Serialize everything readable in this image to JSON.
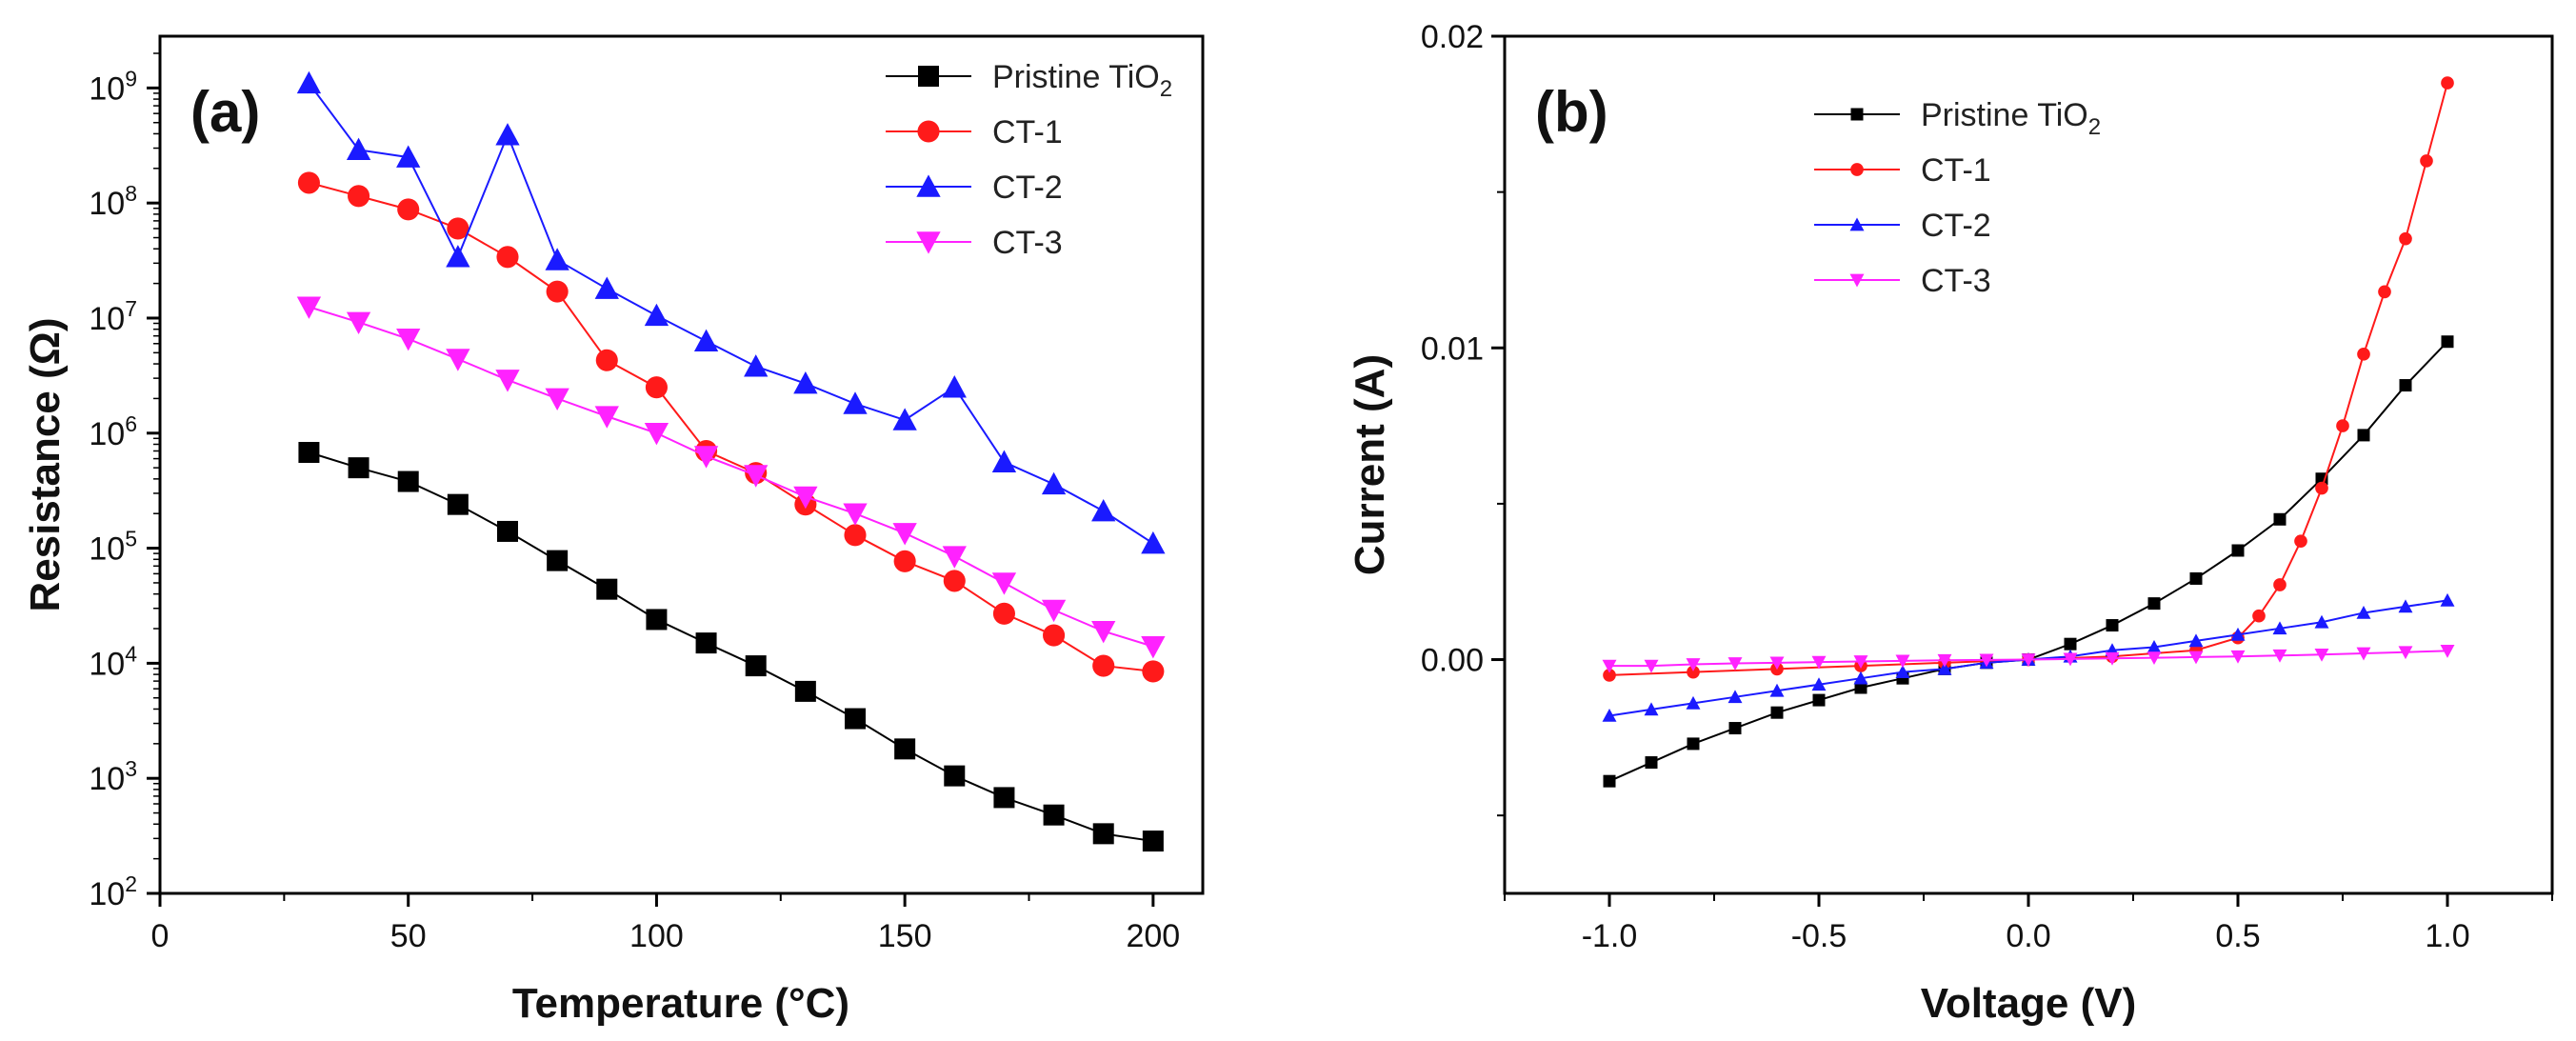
{
  "chart_data": [
    {
      "panel_label": "(a)",
      "type": "line",
      "scale_y": "log",
      "xlabel": "Temperature (°C)",
      "ylabel": "Resistance (Ω)",
      "xlim": [
        0,
        210
      ],
      "ylim_exp": [
        2,
        9.45
      ],
      "x_ticks": [
        0,
        50,
        100,
        150,
        200
      ],
      "y_tick_exponents": [
        2,
        3,
        4,
        5,
        6,
        7,
        8,
        9
      ],
      "y_tick_base": "10",
      "legend_position": "top-right",
      "x": [
        30,
        40,
        50,
        60,
        70,
        80,
        90,
        100,
        110,
        120,
        130,
        140,
        150,
        160,
        170,
        180,
        190,
        200
      ],
      "series": [
        {
          "name": "Pristine TiO",
          "name_sub": "2",
          "color": "#000000",
          "marker": "square",
          "values": [
            680000,
            500000,
            380000,
            240000,
            140000,
            78000,
            44000,
            24000,
            15000,
            9500,
            5700,
            3300,
            1800,
            1050,
            680,
            480,
            330,
            285
          ]
        },
        {
          "name": "CT-1",
          "name_sub": "",
          "color": "#ff1a1a",
          "marker": "circle",
          "values": [
            150000000,
            115000000,
            88000000,
            60000000,
            34000000,
            17000000,
            4300000,
            2500000,
            700000,
            450000,
            240000,
            130000,
            77000,
            52000,
            27000,
            17500,
            9500,
            8500
          ]
        },
        {
          "name": "CT-2",
          "name_sub": "",
          "color": "#1a1aff",
          "marker": "triangle-up",
          "values": [
            1100000000,
            290000000,
            250000000,
            34000000,
            390000000,
            32000000,
            18000000,
            10500000,
            6300000,
            3800000,
            2700000,
            1800000,
            1300000,
            2500000,
            560000,
            360000,
            210000,
            110000
          ]
        },
        {
          "name": "CT-3",
          "name_sub": "",
          "color": "#ff22ff",
          "marker": "triangle-down",
          "values": [
            12500000,
            9200000,
            6600000,
            4400000,
            2900000,
            2000000,
            1400000,
            1000000,
            630000,
            430000,
            280000,
            200000,
            135000,
            85000,
            50000,
            29000,
            19000,
            14000
          ]
        }
      ]
    },
    {
      "panel_label": "(b)",
      "type": "line",
      "xlabel": "Voltage (V)",
      "ylabel": "Current (A)",
      "xlim": [
        -1.25,
        1.25
      ],
      "ylim": [
        -0.0075,
        0.02
      ],
      "x_ticks": [
        "-1.0",
        "-0.5",
        "0.0",
        "0.5",
        "1.0"
      ],
      "y_ticks": [
        "0.00",
        "0.01",
        "0.02"
      ],
      "legend_position": "top-center",
      "series": [
        {
          "name": "Pristine TiO",
          "name_sub": "2",
          "color": "#000000",
          "marker": "square",
          "x": [
            -1.0,
            -0.9,
            -0.8,
            -0.7,
            -0.6,
            -0.5,
            -0.4,
            -0.3,
            -0.2,
            -0.1,
            0.0,
            0.1,
            0.2,
            0.3,
            0.4,
            0.5,
            0.6,
            0.7,
            0.8,
            0.9,
            1.0
          ],
          "values": [
            -0.0039,
            -0.0033,
            -0.0027,
            -0.0022,
            -0.0017,
            -0.0013,
            -0.0009,
            -0.0006,
            -0.0003,
            -0.0001,
            0.0,
            0.0005,
            0.0011,
            0.0018,
            0.0026,
            0.0035,
            0.0045,
            0.0058,
            0.0072,
            0.0088,
            0.0102
          ]
        },
        {
          "name": "CT-1",
          "name_sub": "",
          "color": "#ff1a1a",
          "marker": "circle",
          "x": [
            -1.0,
            -0.8,
            -0.6,
            -0.4,
            -0.2,
            0.0,
            0.2,
            0.4,
            0.5,
            0.55,
            0.6,
            0.65,
            0.7,
            0.75,
            0.8,
            0.85,
            0.9,
            0.95,
            1.0
          ],
          "values": [
            -0.0005,
            -0.0004,
            -0.0003,
            -0.0002,
            -0.0001,
            0.0,
            0.0001,
            0.0003,
            0.0007,
            0.0014,
            0.0024,
            0.0038,
            0.0055,
            0.0075,
            0.0098,
            0.0118,
            0.0135,
            0.016,
            0.0185
          ]
        },
        {
          "name": "CT-2",
          "name_sub": "",
          "color": "#1a1aff",
          "marker": "triangle-up",
          "x": [
            -1.0,
            -0.9,
            -0.8,
            -0.7,
            -0.6,
            -0.5,
            -0.4,
            -0.3,
            -0.2,
            -0.1,
            0.0,
            0.1,
            0.2,
            0.3,
            0.4,
            0.5,
            0.6,
            0.7,
            0.8,
            0.9,
            1.0
          ],
          "values": [
            -0.0018,
            -0.0016,
            -0.0014,
            -0.0012,
            -0.001,
            -0.0008,
            -0.0006,
            -0.0004,
            -0.0003,
            -0.0001,
            0.0,
            0.0001,
            0.0003,
            0.0004,
            0.0006,
            0.0008,
            0.001,
            0.0012,
            0.0015,
            0.0017,
            0.0019
          ]
        },
        {
          "name": "CT-3",
          "name_sub": "",
          "color": "#ff22ff",
          "marker": "triangle-down",
          "x": [
            -1.0,
            -0.9,
            -0.8,
            -0.7,
            -0.6,
            -0.5,
            -0.4,
            -0.3,
            -0.2,
            -0.1,
            0.0,
            0.1,
            0.2,
            0.3,
            0.4,
            0.5,
            0.6,
            0.7,
            0.8,
            0.9,
            1.0
          ],
          "values": [
            -0.0002,
            -0.0002,
            -0.00015,
            -0.00012,
            -0.0001,
            -8e-05,
            -6e-05,
            -4e-05,
            -2e-05,
            -1e-05,
            0.0,
            2e-05,
            4e-05,
            6e-05,
            8e-05,
            0.0001,
            0.00013,
            0.00016,
            0.0002,
            0.00024,
            0.00028
          ]
        }
      ]
    }
  ]
}
